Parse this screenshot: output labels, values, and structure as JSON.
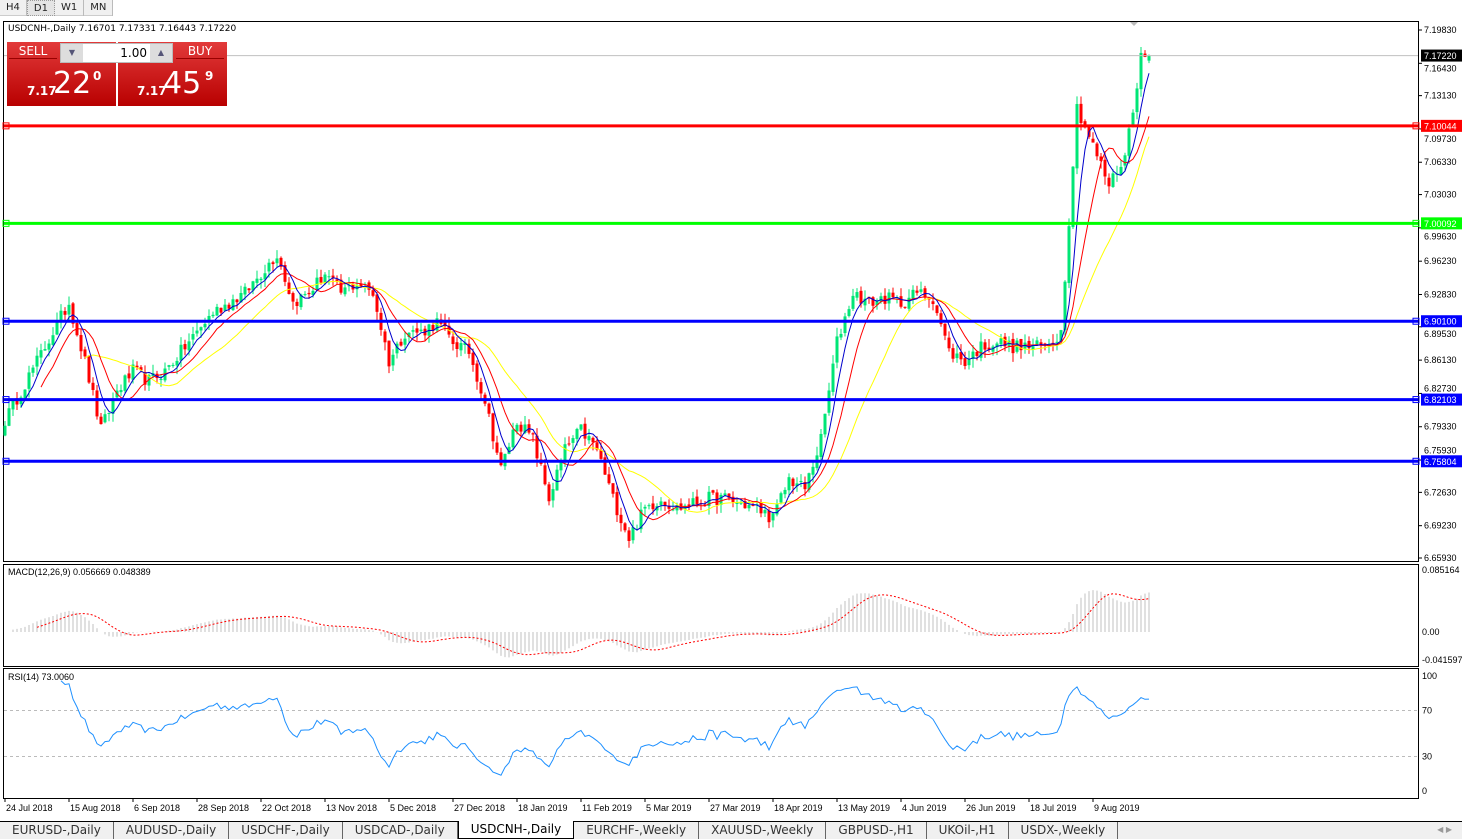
{
  "timeframes": [
    "H4",
    "D1",
    "W1",
    "MN"
  ],
  "timeframe_selected": "D1",
  "header": {
    "title": "USDCNH-,Daily  7.16701 7.17331 7.16443 7.17220"
  },
  "trade_panel": {
    "sell_label": "SELL",
    "buy_label": "BUY",
    "lot": "1.00",
    "sell_prefix": "7.17",
    "sell_big": "22",
    "sell_sup": "0",
    "buy_prefix": "7.17",
    "buy_big": "45",
    "buy_sup": "9"
  },
  "colors": {
    "bull": "#00e676",
    "bear": "#ff0000",
    "ma_fast": "#0000cc",
    "ma_mid": "#ff0000",
    "ma_slow": "#ffff00",
    "rsi": "#1e90ff",
    "macd_hist": "#c0c0c0",
    "macd_signal": "#ff0000"
  },
  "chart_data": {
    "type": "candlestick",
    "symbol": "USDCNH-",
    "timeframe": "Daily",
    "last": {
      "open": 7.16701,
      "high": 7.17331,
      "low": 7.16443,
      "close": 7.1722
    },
    "ylim": [
      6.6593,
      7.1983
    ],
    "y_ticks": [
      "7.19830",
      "7.16430",
      "7.13130",
      "7.09730",
      "7.06330",
      "7.03030",
      "6.99630",
      "6.96230",
      "6.92830",
      "6.89530",
      "6.86130",
      "6.82730",
      "6.79330",
      "6.75930",
      "6.72630",
      "6.69230",
      "6.65930"
    ],
    "x_ticks": [
      "24 Jul 2018",
      "15 Aug 2018",
      "6 Sep 2018",
      "28 Sep 2018",
      "22 Oct 2018",
      "13 Nov 2018",
      "5 Dec 2018",
      "27 Dec 2018",
      "18 Jan 2019",
      "11 Feb 2019",
      "5 Mar 2019",
      "27 Mar 2019",
      "18 Apr 2019",
      "13 May 2019",
      "4 Jun 2019",
      "26 Jun 2019",
      "18 Jul 2019",
      "9 Aug 2019"
    ],
    "close_every_4_bars": [
      6.8,
      6.83,
      6.86,
      6.89,
      6.92,
      6.86,
      6.79,
      6.83,
      6.85,
      6.84,
      6.85,
      6.87,
      6.89,
      6.91,
      6.92,
      6.93,
      6.95,
      6.97,
      6.92,
      6.93,
      6.95,
      6.93,
      6.94,
      6.93,
      6.86,
      6.89,
      6.89,
      6.9,
      6.88,
      6.87,
      6.82,
      6.75,
      6.8,
      6.78,
      6.72,
      6.77,
      6.79,
      6.77,
      6.72,
      6.68,
      6.71,
      6.72,
      6.71,
      6.715,
      6.72,
      6.72,
      6.715,
      6.71,
      6.7,
      6.74,
      6.73,
      6.78,
      6.88,
      6.93,
      6.92,
      6.925,
      6.92,
      6.93,
      6.925,
      6.87,
      6.86,
      6.875,
      6.88,
      6.875,
      6.875,
      6.875,
      6.89,
      7.12,
      7.08,
      7.04,
      7.07,
      7.17,
      7.1722
    ],
    "levels": [
      {
        "price": "7.10044",
        "color": "#ff0000"
      },
      {
        "price": "7.00092",
        "color": "#00ff00"
      },
      {
        "price": "6.90100",
        "color": "#0000ff"
      },
      {
        "price": "6.82103",
        "color": "#0000ff"
      },
      {
        "price": "6.75804",
        "color": "#0000ff"
      }
    ],
    "current_price": "7.17220",
    "macd": {
      "label": "MACD(12,26,9) 0.056669 0.048389",
      "ticks": [
        "0.085164",
        "0.00",
        "-0.041597"
      ],
      "ylim": [
        -0.041597,
        0.085164
      ]
    },
    "rsi": {
      "label": "RSI(14) 73.0060",
      "ticks": [
        "100",
        "70",
        "30",
        "0"
      ],
      "levels": [
        70,
        30
      ]
    }
  },
  "tabs": [
    "EURUSD-,Daily",
    "AUDUSD-,Daily",
    "USDCHF-,Daily",
    "USDCAD-,Daily",
    "USDCNH-,Daily",
    "EURCHF-,Weekly",
    "XAUUSD-,Weekly",
    "GBPUSD-,H1",
    "UKOil-,H1",
    "USDX-,Weekly"
  ],
  "active_tab": "USDCNH-,Daily"
}
